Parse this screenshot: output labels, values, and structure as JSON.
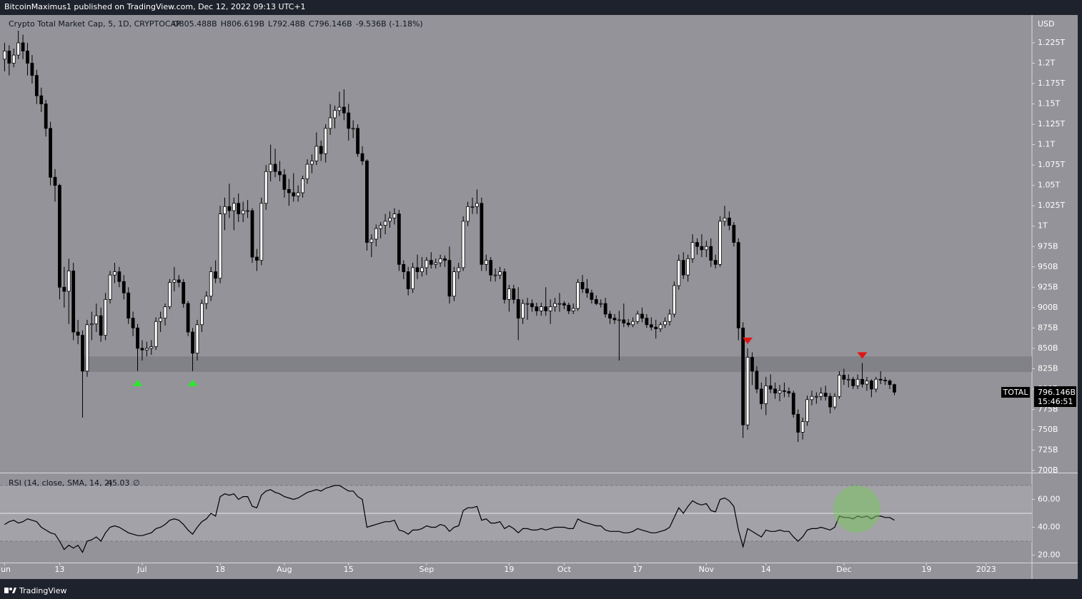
{
  "header": {
    "publisher": "BitcoinMaximus1 published on TradingView.com, Dec 12, 2022 09:13 UTC+1"
  },
  "footer": {
    "brand": "TradingView"
  },
  "chart_data": {
    "type": "candlestick",
    "title": "Crypto Total Market Cap, 5, 1D, CRYPTOCAP",
    "ohlc_legend": [
      "O805.488B",
      "H806.619B",
      "L792.48B",
      "C796.146B",
      "-9.536B (-1.18%)"
    ],
    "currency": "USD",
    "symbol": "TOTAL",
    "last_price_label": "796.146B",
    "countdown": "15:46:51",
    "start_date": "2022-06-01",
    "up_color": "#ffffff",
    "down_color": "#000000",
    "candles": [
      [
        1205,
        1225,
        1190,
        1215
      ],
      [
        1215,
        1222,
        1185,
        1200
      ],
      [
        1200,
        1218,
        1195,
        1210
      ],
      [
        1210,
        1240,
        1205,
        1225
      ],
      [
        1225,
        1235,
        1205,
        1215
      ],
      [
        1215,
        1225,
        1185,
        1200
      ],
      [
        1200,
        1210,
        1175,
        1185
      ],
      [
        1185,
        1192,
        1150,
        1160
      ],
      [
        1160,
        1170,
        1140,
        1150
      ],
      [
        1150,
        1155,
        1110,
        1120
      ],
      [
        1120,
        1128,
        1050,
        1060
      ],
      [
        1060,
        1070,
        1030,
        1050
      ],
      [
        1050,
        1052,
        910,
        925
      ],
      [
        925,
        950,
        900,
        920
      ],
      [
        920,
        960,
        880,
        945
      ],
      [
        945,
        955,
        860,
        870
      ],
      [
        870,
        885,
        855,
        866
      ],
      [
        866,
        872,
        765,
        822
      ],
      [
        822,
        885,
        815,
        879
      ],
      [
        879,
        895,
        860,
        880
      ],
      [
        880,
        905,
        870,
        890
      ],
      [
        890,
        900,
        858,
        866
      ],
      [
        866,
        918,
        860,
        910
      ],
      [
        910,
        945,
        905,
        940
      ],
      [
        940,
        955,
        930,
        944
      ],
      [
        944,
        950,
        925,
        932
      ],
      [
        932,
        940,
        910,
        918
      ],
      [
        918,
        925,
        880,
        887
      ],
      [
        887,
        895,
        865,
        875
      ],
      [
        875,
        880,
        822,
        850
      ],
      [
        850,
        860,
        835,
        848
      ],
      [
        848,
        858,
        840,
        850
      ],
      [
        850,
        860,
        842,
        852
      ],
      [
        852,
        888,
        848,
        883
      ],
      [
        883,
        895,
        870,
        887
      ],
      [
        887,
        905,
        878,
        901
      ],
      [
        901,
        935,
        898,
        931
      ],
      [
        931,
        950,
        920,
        934
      ],
      [
        934,
        940,
        925,
        931
      ],
      [
        931,
        935,
        900,
        905
      ],
      [
        905,
        908,
        865,
        870
      ],
      [
        870,
        875,
        822,
        844
      ],
      [
        844,
        885,
        835,
        879
      ],
      [
        879,
        910,
        870,
        905
      ],
      [
        905,
        920,
        898,
        914
      ],
      [
        914,
        950,
        908,
        944
      ],
      [
        944,
        958,
        930,
        936
      ],
      [
        936,
        1025,
        930,
        1015
      ],
      [
        1015,
        1035,
        995,
        1024
      ],
      [
        1024,
        1052,
        1010,
        1019
      ],
      [
        1019,
        1035,
        995,
        1028
      ],
      [
        1028,
        1040,
        1005,
        1015
      ],
      [
        1015,
        1030,
        1005,
        1019
      ],
      [
        1019,
        1032,
        1010,
        1019
      ],
      [
        1019,
        1022,
        955,
        962
      ],
      [
        962,
        972,
        945,
        958
      ],
      [
        958,
        1035,
        952,
        1028
      ],
      [
        1028,
        1075,
        1020,
        1067
      ],
      [
        1067,
        1100,
        1055,
        1076
      ],
      [
        1076,
        1095,
        1060,
        1067
      ],
      [
        1067,
        1080,
        1055,
        1063
      ],
      [
        1063,
        1070,
        1035,
        1045
      ],
      [
        1045,
        1058,
        1025,
        1041
      ],
      [
        1041,
        1065,
        1030,
        1037
      ],
      [
        1037,
        1050,
        1030,
        1041
      ],
      [
        1041,
        1062,
        1035,
        1058
      ],
      [
        1058,
        1082,
        1052,
        1076
      ],
      [
        1076,
        1088,
        1065,
        1080
      ],
      [
        1080,
        1115,
        1075,
        1098
      ],
      [
        1098,
        1105,
        1080,
        1089
      ],
      [
        1089,
        1125,
        1078,
        1120
      ],
      [
        1120,
        1150,
        1112,
        1133
      ],
      [
        1133,
        1148,
        1120,
        1142
      ],
      [
        1142,
        1165,
        1135,
        1146
      ],
      [
        1146,
        1168,
        1130,
        1139
      ],
      [
        1139,
        1150,
        1105,
        1120
      ],
      [
        1120,
        1130,
        1108,
        1120
      ],
      [
        1120,
        1125,
        1085,
        1089
      ],
      [
        1089,
        1098,
        1075,
        1080
      ],
      [
        1080,
        1082,
        970,
        980
      ],
      [
        980,
        990,
        962,
        984
      ],
      [
        984,
        1002,
        975,
        997
      ],
      [
        997,
        1005,
        985,
        1001
      ],
      [
        1001,
        1015,
        990,
        1006
      ],
      [
        1006,
        1018,
        998,
        1010
      ],
      [
        1010,
        1022,
        1002,
        1015
      ],
      [
        1015,
        1020,
        945,
        953
      ],
      [
        953,
        958,
        935,
        944
      ],
      [
        944,
        950,
        915,
        923
      ],
      [
        923,
        955,
        918,
        949
      ],
      [
        949,
        965,
        935,
        944
      ],
      [
        944,
        962,
        938,
        949
      ],
      [
        949,
        962,
        940,
        958
      ],
      [
        958,
        968,
        948,
        953
      ],
      [
        953,
        960,
        948,
        955
      ],
      [
        955,
        965,
        950,
        960
      ],
      [
        960,
        964,
        950,
        958
      ],
      [
        958,
        975,
        905,
        914
      ],
      [
        914,
        950,
        908,
        944
      ],
      [
        944,
        955,
        935,
        949
      ],
      [
        949,
        1012,
        945,
        1006
      ],
      [
        1006,
        1030,
        1000,
        1024
      ],
      [
        1024,
        1035,
        1015,
        1024
      ],
      [
        1024,
        1045,
        1015,
        1028
      ],
      [
        1028,
        1035,
        945,
        953
      ],
      [
        953,
        965,
        945,
        958
      ],
      [
        958,
        962,
        932,
        940
      ],
      [
        940,
        948,
        932,
        940
      ],
      [
        940,
        950,
        935,
        944
      ],
      [
        944,
        948,
        905,
        910
      ],
      [
        910,
        928,
        895,
        923
      ],
      [
        923,
        928,
        905,
        910
      ],
      [
        910,
        925,
        860,
        887
      ],
      [
        887,
        910,
        880,
        905
      ],
      [
        905,
        912,
        885,
        905
      ],
      [
        905,
        910,
        895,
        901
      ],
      [
        901,
        906,
        890,
        896
      ],
      [
        896,
        906,
        890,
        901
      ],
      [
        901,
        925,
        890,
        896
      ],
      [
        896,
        910,
        880,
        901
      ],
      [
        901,
        912,
        895,
        905
      ],
      [
        905,
        918,
        895,
        905
      ],
      [
        905,
        908,
        898,
        903
      ],
      [
        903,
        906,
        892,
        896
      ],
      [
        896,
        905,
        892,
        899
      ],
      [
        899,
        935,
        896,
        931
      ],
      [
        931,
        940,
        918,
        923
      ],
      [
        923,
        935,
        912,
        918
      ],
      [
        918,
        922,
        905,
        910
      ],
      [
        910,
        915,
        903,
        905
      ],
      [
        905,
        910,
        900,
        905
      ],
      [
        905,
        912,
        888,
        892
      ],
      [
        892,
        896,
        880,
        887
      ],
      [
        887,
        892,
        880,
        885
      ],
      [
        885,
        896,
        835,
        885
      ],
      [
        885,
        905,
        876,
        881
      ],
      [
        881,
        886,
        876,
        879
      ],
      [
        879,
        888,
        876,
        883
      ],
      [
        883,
        896,
        880,
        892
      ],
      [
        892,
        900,
        882,
        887
      ],
      [
        887,
        892,
        875,
        879
      ],
      [
        879,
        888,
        872,
        876
      ],
      [
        876,
        885,
        862,
        874
      ],
      [
        874,
        882,
        870,
        879
      ],
      [
        879,
        888,
        875,
        883
      ],
      [
        883,
        898,
        878,
        892
      ],
      [
        892,
        932,
        888,
        927
      ],
      [
        927,
        965,
        922,
        958
      ],
      [
        958,
        968,
        935,
        940
      ],
      [
        940,
        965,
        932,
        960
      ],
      [
        960,
        990,
        955,
        980
      ],
      [
        980,
        985,
        965,
        975
      ],
      [
        975,
        990,
        962,
        971
      ],
      [
        971,
        982,
        962,
        975
      ],
      [
        975,
        985,
        950,
        958
      ],
      [
        958,
        965,
        948,
        953
      ],
      [
        953,
        1012,
        950,
        1006
      ],
      [
        1006,
        1025,
        1000,
        1010
      ],
      [
        1010,
        1018,
        995,
        1001
      ],
      [
        1001,
        1005,
        975,
        980
      ],
      [
        980,
        985,
        860,
        875
      ],
      [
        875,
        882,
        740,
        756
      ],
      [
        756,
        850,
        750,
        839
      ],
      [
        839,
        845,
        805,
        822
      ],
      [
        822,
        828,
        795,
        800
      ],
      [
        800,
        808,
        775,
        782
      ],
      [
        782,
        815,
        768,
        804
      ],
      [
        804,
        818,
        795,
        800
      ],
      [
        800,
        808,
        788,
        795
      ],
      [
        795,
        805,
        785,
        798
      ],
      [
        798,
        808,
        790,
        797
      ],
      [
        797,
        802,
        790,
        795
      ],
      [
        795,
        798,
        765,
        769
      ],
      [
        769,
        775,
        735,
        747
      ],
      [
        747,
        765,
        738,
        760
      ],
      [
        760,
        792,
        755,
        787
      ],
      [
        787,
        798,
        780,
        791
      ],
      [
        791,
        796,
        782,
        791
      ],
      [
        791,
        802,
        786,
        795
      ],
      [
        795,
        804,
        786,
        791
      ],
      [
        791,
        795,
        770,
        778
      ],
      [
        778,
        795,
        775,
        791
      ],
      [
        791,
        822,
        788,
        817
      ],
      [
        817,
        825,
        805,
        812
      ],
      [
        812,
        818,
        802,
        812
      ],
      [
        812,
        815,
        800,
        804
      ],
      [
        804,
        818,
        800,
        812
      ],
      [
        812,
        832,
        802,
        806
      ],
      [
        806,
        815,
        798,
        810
      ],
      [
        810,
        812,
        790,
        800
      ],
      [
        800,
        815,
        796,
        812
      ],
      [
        812,
        822,
        806,
        811
      ],
      [
        811,
        815,
        805,
        810
      ],
      [
        810,
        812,
        800,
        805.488
      ],
      [
        805.488,
        806.619,
        792.48,
        796.146
      ]
    ],
    "zone": {
      "from": "2022-06-18",
      "low": 821,
      "high": 840,
      "color": "#7d7d83"
    },
    "support_markers": [
      "2022-06-30",
      "2022-07-12"
    ],
    "resistance_markers": [
      "2022-11-10",
      "2022-12-05"
    ],
    "xlim": [
      "2022-05-31",
      "2023-01-11"
    ],
    "xticks": [
      {
        "value": "2022-06-01",
        "label": "Jun"
      },
      {
        "value": "2022-06-13",
        "label": "13"
      },
      {
        "value": "2022-07-01",
        "label": "Jul"
      },
      {
        "value": "2022-07-18",
        "label": "18"
      },
      {
        "value": "2022-08-01",
        "label": "Aug"
      },
      {
        "value": "2022-08-15",
        "label": "15"
      },
      {
        "value": "2022-09-01",
        "label": "Sep"
      },
      {
        "value": "2022-09-19",
        "label": "19"
      },
      {
        "value": "2022-10-01",
        "label": "Oct"
      },
      {
        "value": "2022-10-17",
        "label": "17"
      },
      {
        "value": "2022-11-01",
        "label": "Nov"
      },
      {
        "value": "2022-11-14",
        "label": "14"
      },
      {
        "value": "2022-12-01",
        "label": "Dec"
      },
      {
        "value": "2022-12-19",
        "label": "19"
      },
      {
        "value": "2023-01-01",
        "label": "2023"
      }
    ],
    "ylim": [
      697.4,
      1258.3
    ],
    "yticks": [
      {
        "value": 700,
        "label": "700B"
      },
      {
        "value": 725,
        "label": "725B"
      },
      {
        "value": 750,
        "label": "750B"
      },
      {
        "value": 775,
        "label": "775B"
      },
      {
        "value": 800,
        "label": "800B"
      },
      {
        "value": 825,
        "label": "825B"
      },
      {
        "value": 850,
        "label": "850B"
      },
      {
        "value": 875,
        "label": "875B"
      },
      {
        "value": 900,
        "label": "900B"
      },
      {
        "value": 925,
        "label": "925B"
      },
      {
        "value": 950,
        "label": "950B"
      },
      {
        "value": 975,
        "label": "975B"
      },
      {
        "value": 1000,
        "label": "1T"
      },
      {
        "value": 1025,
        "label": "1.025T"
      },
      {
        "value": 1050,
        "label": "1.05T"
      },
      {
        "value": 1075,
        "label": "1.075T"
      },
      {
        "value": 1100,
        "label": "1.1T"
      },
      {
        "value": 1125,
        "label": "1.125T"
      },
      {
        "value": 1150,
        "label": "1.15T"
      },
      {
        "value": 1175,
        "label": "1.175T"
      },
      {
        "value": 1200,
        "label": "1.2T"
      },
      {
        "value": 1225,
        "label": "1.225T"
      }
    ],
    "rsi": {
      "title": "RSI (14, close, SMA, 14, 2)",
      "last_label": "45.03",
      "extra": "∅",
      "color": "#000000",
      "values": [
        42,
        44,
        45,
        43,
        44,
        46,
        45,
        44,
        40,
        38,
        36,
        35,
        30,
        24,
        27,
        25,
        27,
        22,
        30,
        31,
        33,
        30,
        36,
        40,
        41,
        40,
        38,
        36,
        35,
        34,
        34,
        35,
        36,
        39,
        40,
        42,
        45,
        46,
        45,
        42,
        38,
        35,
        40,
        44,
        46,
        50,
        48,
        62,
        64,
        63,
        64,
        60,
        62,
        62,
        55,
        54,
        63,
        66,
        67,
        65,
        64,
        62,
        61,
        60,
        61,
        63,
        65,
        66,
        67,
        66,
        68,
        69,
        70,
        70,
        68,
        66,
        66,
        62,
        60,
        40,
        41,
        42,
        43,
        44,
        44,
        45,
        38,
        37,
        35,
        38,
        38,
        39,
        41,
        40,
        40,
        42,
        41,
        37,
        40,
        41,
        52,
        54,
        54,
        55,
        45,
        46,
        43,
        43,
        44,
        39,
        41,
        39,
        36,
        39,
        39,
        38,
        38,
        39,
        38,
        39,
        40,
        40,
        40,
        39,
        39,
        46,
        44,
        43,
        42,
        41,
        41,
        38,
        37,
        37,
        37,
        36,
        36,
        37,
        39,
        38,
        37,
        36,
        36,
        37,
        38,
        40,
        47,
        54,
        50,
        55,
        59,
        57,
        56,
        57,
        52,
        51,
        60,
        61,
        59,
        55,
        38,
        26,
        39,
        37,
        35,
        33,
        38,
        37,
        37,
        38,
        37,
        37,
        33,
        30,
        33,
        38,
        39,
        39,
        40,
        39,
        38,
        40,
        48,
        47,
        47,
        46,
        48,
        47,
        48,
        46,
        48,
        48,
        47,
        47,
        45.03
      ],
      "ylim": [
        14.6,
        78.7
      ],
      "yticks": [
        {
          "value": 20,
          "label": "20.00"
        },
        {
          "value": 40,
          "label": "40.00"
        },
        {
          "value": 60,
          "label": "60.00"
        }
      ],
      "levels": [
        30,
        50,
        70
      ]
    }
  }
}
